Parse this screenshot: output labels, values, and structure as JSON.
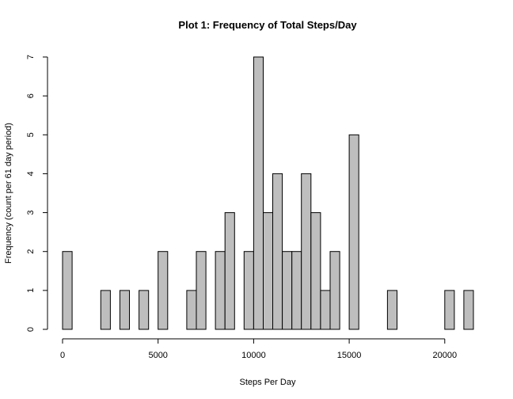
{
  "chart_data": {
    "type": "bar",
    "title": "Plot 1: Frequency of Total Steps/Day",
    "xlabel": "Steps Per Day",
    "ylabel": "Frequency (count per 61 day period)",
    "bin_width": 500,
    "xlim": [
      0,
      21500
    ],
    "ylim": [
      0,
      7
    ],
    "x_ticks": [
      0,
      5000,
      10000,
      15000,
      20000
    ],
    "y_ticks": [
      0,
      1,
      2,
      3,
      4,
      5,
      6,
      7
    ],
    "x_tick_labels": [
      "0",
      "5000",
      "10000",
      "15000",
      "20000"
    ],
    "y_tick_labels": [
      "0",
      "1",
      "2",
      "3",
      "4",
      "5",
      "6",
      "7"
    ],
    "grid": false,
    "bars": [
      {
        "x0": 0,
        "x1": 500,
        "count": 2
      },
      {
        "x0": 2000,
        "x1": 2500,
        "count": 1
      },
      {
        "x0": 3000,
        "x1": 3500,
        "count": 1
      },
      {
        "x0": 4000,
        "x1": 4500,
        "count": 1
      },
      {
        "x0": 5000,
        "x1": 5500,
        "count": 2
      },
      {
        "x0": 6500,
        "x1": 7000,
        "count": 1
      },
      {
        "x0": 7000,
        "x1": 7500,
        "count": 2
      },
      {
        "x0": 8000,
        "x1": 8500,
        "count": 2
      },
      {
        "x0": 8500,
        "x1": 9000,
        "count": 3
      },
      {
        "x0": 9500,
        "x1": 10000,
        "count": 2
      },
      {
        "x0": 10000,
        "x1": 10500,
        "count": 7
      },
      {
        "x0": 10500,
        "x1": 11000,
        "count": 3
      },
      {
        "x0": 11000,
        "x1": 11500,
        "count": 4
      },
      {
        "x0": 11500,
        "x1": 12000,
        "count": 2
      },
      {
        "x0": 12000,
        "x1": 12500,
        "count": 2
      },
      {
        "x0": 12500,
        "x1": 13000,
        "count": 4
      },
      {
        "x0": 13000,
        "x1": 13500,
        "count": 3
      },
      {
        "x0": 13500,
        "x1": 14000,
        "count": 1
      },
      {
        "x0": 14000,
        "x1": 14500,
        "count": 2
      },
      {
        "x0": 15000,
        "x1": 15500,
        "count": 5
      },
      {
        "x0": 17000,
        "x1": 17500,
        "count": 1
      },
      {
        "x0": 20000,
        "x1": 20500,
        "count": 1
      },
      {
        "x0": 21000,
        "x1": 21500,
        "count": 1
      }
    ]
  }
}
